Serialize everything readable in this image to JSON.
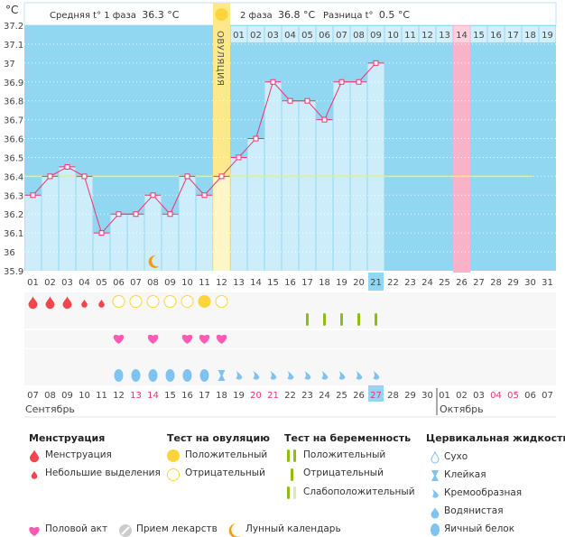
{
  "header": {
    "unit": "°C",
    "phase1_label": "Средняя t° 1 фаза",
    "phase1_value": "36.3 °C",
    "phase2_label": "2 фаза",
    "phase2_value": "36.8 °C",
    "diff_label": "Разница t°",
    "diff_value": "0.5 °C",
    "ovulation_label": "ОВУЛЯЦИЯ"
  },
  "chart_data": {
    "type": "line",
    "ylim": [
      35.9,
      37.2
    ],
    "yticks": [
      "37.2",
      "37.1",
      "37",
      "36.9",
      "36.8",
      "36.7",
      "36.6",
      "36.5",
      "36.4",
      "36.3",
      "36.2",
      "36.1",
      "36",
      "35.9"
    ],
    "cycle_days": [
      "01",
      "02",
      "03",
      "04",
      "05",
      "06",
      "07",
      "08",
      "09",
      "10",
      "11",
      "12",
      "13",
      "14",
      "15",
      "16",
      "17",
      "18",
      "19",
      "20",
      "21",
      "22",
      "23",
      "24",
      "25",
      "26",
      "27",
      "28",
      "29",
      "30",
      "31"
    ],
    "temperatures": [
      36.3,
      36.4,
      36.45,
      36.4,
      36.1,
      36.2,
      36.2,
      36.3,
      36.2,
      36.4,
      36.3,
      36.4,
      36.5,
      36.6,
      36.9,
      36.8,
      36.8,
      36.7,
      36.9,
      36.9,
      37.0
    ],
    "coverline": 36.4,
    "ovulation_day": 12,
    "current_day": 21,
    "expected_period_day": 26,
    "phase2_days": [
      "01",
      "02",
      "03",
      "04",
      "05",
      "06",
      "07",
      "08",
      "09",
      "10",
      "11",
      "12",
      "13",
      "14",
      "15",
      "16",
      "17",
      "18",
      "19"
    ],
    "moon_day": 8,
    "menstruation": {
      "heavy": [
        1,
        2,
        3
      ],
      "light": [
        4,
        5
      ]
    },
    "ovulation_test": {
      "negative": [
        6,
        7,
        8,
        9,
        10,
        12
      ],
      "positive": [
        11
      ]
    },
    "pregnancy_test": {
      "negative": [
        17,
        18,
        19,
        20,
        21
      ]
    },
    "intercourse": [
      6,
      8,
      10,
      11,
      12
    ],
    "cervical_fluid": {
      "egg_white": [
        6,
        7,
        8,
        9,
        10,
        11
      ],
      "sticky": [
        12
      ],
      "creamy": [
        13,
        14,
        15,
        16,
        17,
        18,
        19,
        20,
        21
      ]
    },
    "dates": [
      "07",
      "08",
      "09",
      "10",
      "11",
      "12",
      "13",
      "14",
      "15",
      "16",
      "17",
      "18",
      "19",
      "20",
      "21",
      "22",
      "23",
      "24",
      "25",
      "26",
      "27",
      "28",
      "29",
      "30",
      "01",
      "02",
      "03",
      "04",
      "05",
      "06",
      "07"
    ],
    "weekend_dates_idx": [
      6,
      7,
      13,
      14,
      20,
      27,
      28
    ],
    "months": [
      "Сентябрь",
      "Октябрь"
    ]
  },
  "colors": {
    "bg": "#92d7f2",
    "bar": "#cdedfb",
    "line": "#f0326e",
    "ovulation": "#fde98a",
    "period": "#f9b3c8",
    "blood": "#f2454d",
    "heart": "#ff5ab4",
    "green": "#8dbd12",
    "drop": "#7fc4f0",
    "moon": "#f59a12"
  },
  "legend": {
    "menstruation": {
      "title": "Менструация",
      "items": [
        "Менструация",
        "Небольшие выделения"
      ]
    },
    "ovulation": {
      "title": "Тест на овуляцию",
      "items": [
        "Положительный",
        "Отрицательный"
      ]
    },
    "pregnancy": {
      "title": "Тест на беременность",
      "items": [
        "Положительный",
        "Отрицательный",
        "Слабоположительный"
      ]
    },
    "cervical": {
      "title": "Цервикальная жидкость",
      "items": [
        "Сухо",
        "Клейкая",
        "Кремообразная",
        "Водянистая",
        "Яичный белок"
      ]
    },
    "bottom": [
      "Половой акт",
      "Прием лекарств",
      "Лунный календарь"
    ]
  }
}
